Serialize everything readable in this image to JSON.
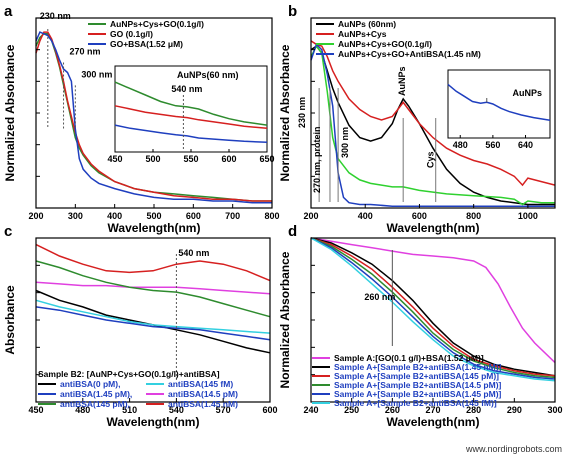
{
  "watermark": "www.nordingrobots.com",
  "chart_data": [
    {
      "panel": "a",
      "type": "line",
      "xlabel": "Wavelength(nm)",
      "ylabel": "Normalized Absorbance",
      "xlim": [
        200,
        800
      ],
      "ylim": [
        0,
        1.08
      ],
      "xticks": [
        200,
        300,
        400,
        500,
        600,
        700,
        800
      ],
      "legend_position": "top-right",
      "annotations": [
        {
          "text": "230 nm",
          "x": 230,
          "y": 1.04
        },
        {
          "text": "270 nm",
          "x": 270,
          "y": 0.85
        },
        {
          "text": "300 nm",
          "x": 300,
          "y": 0.72
        }
      ],
      "series": [
        {
          "name": "AuNPs+Cys+GO(0.1g/l)",
          "color": "#2e8b2e",
          "x": [
            200,
            210,
            220,
            230,
            240,
            250,
            260,
            270,
            280,
            290,
            300,
            310,
            320,
            340,
            360,
            400,
            450,
            500,
            550,
            600,
            650,
            700,
            750,
            800
          ],
          "y": [
            0.92,
            0.97,
            0.99,
            0.99,
            0.95,
            0.88,
            0.8,
            0.7,
            0.6,
            0.5,
            0.4,
            0.34,
            0.3,
            0.24,
            0.2,
            0.15,
            0.11,
            0.09,
            0.08,
            0.07,
            0.06,
            0.05,
            0.04,
            0.04
          ]
        },
        {
          "name": "GO (0.1g/l)",
          "color": "#d62020",
          "x": [
            200,
            210,
            220,
            230,
            240,
            250,
            260,
            270,
            280,
            290,
            300,
            310,
            320,
            340,
            360,
            400,
            450,
            500,
            550,
            600,
            650,
            700,
            750,
            800
          ],
          "y": [
            0.88,
            0.95,
            1.0,
            1.0,
            0.96,
            0.89,
            0.81,
            0.72,
            0.61,
            0.52,
            0.43,
            0.36,
            0.31,
            0.25,
            0.21,
            0.15,
            0.11,
            0.09,
            0.07,
            0.06,
            0.05,
            0.05,
            0.04,
            0.04
          ]
        },
        {
          "name": "GO+BSA(1.52 μM)",
          "color": "#1f3fbf",
          "x": [
            200,
            210,
            220,
            230,
            240,
            250,
            260,
            270,
            280,
            290,
            300,
            310,
            320,
            340,
            360,
            400,
            450,
            500,
            550,
            600,
            650,
            700,
            750,
            800
          ],
          "y": [
            0.95,
            1.0,
            0.99,
            0.98,
            0.95,
            0.9,
            0.84,
            0.79,
            0.77,
            0.72,
            0.45,
            0.28,
            0.22,
            0.17,
            0.14,
            0.11,
            0.08,
            0.06,
            0.05,
            0.05,
            0.04,
            0.04,
            0.03,
            0.03
          ]
        }
      ],
      "inset": {
        "title": "AuNPs(60 nm)",
        "annotation": {
          "text": "540 nm",
          "x": 540
        },
        "xlim": [
          450,
          650
        ],
        "xticks": [
          450,
          500,
          550,
          600,
          650
        ],
        "series": [
          {
            "color": "#2e8b2e",
            "x": [
              450,
              470,
              490,
              510,
              530,
              545,
              560,
              580,
              600,
              620,
              650
            ],
            "y": [
              0.8,
              0.74,
              0.68,
              0.62,
              0.58,
              0.57,
              0.55,
              0.5,
              0.46,
              0.43,
              0.4
            ]
          },
          {
            "color": "#d62020",
            "x": [
              450,
              470,
              490,
              510,
              530,
              545,
              560,
              580,
              600,
              620,
              650
            ],
            "y": [
              0.58,
              0.55,
              0.52,
              0.5,
              0.48,
              0.47,
              0.45,
              0.43,
              0.41,
              0.39,
              0.37
            ]
          },
          {
            "color": "#1f3fbf",
            "x": [
              450,
              470,
              490,
              510,
              530,
              545,
              560,
              580,
              600,
              620,
              650
            ],
            "y": [
              0.4,
              0.37,
              0.35,
              0.33,
              0.31,
              0.3,
              0.28,
              0.27,
              0.26,
              0.25,
              0.24
            ]
          }
        ]
      }
    },
    {
      "panel": "b",
      "type": "line",
      "xlabel": "Wavelength(nm)",
      "ylabel": "Normalized Absorbance",
      "xlim": [
        200,
        1100
      ],
      "ylim": [
        0,
        1.08
      ],
      "xticks": [
        200,
        400,
        600,
        800,
        1000
      ],
      "legend_position": "top-right",
      "annotations": [
        {
          "text": "230 nm",
          "x": 230
        },
        {
          "text": "270 nm, protein",
          "x": 270
        },
        {
          "text": "300 nm",
          "x": 300
        },
        {
          "text": "AuNPs",
          "x": 540
        },
        {
          "text": "Cys",
          "x": 660
        }
      ],
      "series": [
        {
          "name": "AuNPs (60nm)",
          "color": "#000000",
          "x": [
            200,
            220,
            240,
            260,
            280,
            300,
            340,
            380,
            420,
            460,
            500,
            520,
            540,
            560,
            600,
            650,
            700,
            750,
            800,
            850,
            900,
            950,
            1000,
            1050,
            1100
          ],
          "y": [
            0.9,
            0.92,
            0.88,
            0.78,
            0.68,
            0.6,
            0.47,
            0.4,
            0.38,
            0.4,
            0.48,
            0.56,
            0.62,
            0.58,
            0.48,
            0.34,
            0.22,
            0.14,
            0.09,
            0.06,
            0.04,
            0.03,
            0.02,
            0.02,
            0.02
          ]
        },
        {
          "name": "AuNPs+Cys",
          "color": "#d62020",
          "x": [
            200,
            220,
            240,
            260,
            280,
            300,
            340,
            380,
            420,
            460,
            500,
            520,
            540,
            560,
            600,
            650,
            700,
            750,
            800,
            850,
            900,
            950,
            980,
            1000,
            1050,
            1100
          ],
          "y": [
            0.95,
            0.93,
            0.92,
            0.86,
            0.78,
            0.72,
            0.62,
            0.56,
            0.52,
            0.5,
            0.52,
            0.56,
            0.6,
            0.56,
            0.48,
            0.4,
            0.34,
            0.3,
            0.27,
            0.25,
            0.22,
            0.18,
            0.13,
            0.17,
            0.15,
            0.13
          ]
        },
        {
          "name": "AuNPs+Cys+GO(0.1g/l)",
          "color": "#2fd12f",
          "x": [
            200,
            220,
            240,
            260,
            280,
            300,
            340,
            380,
            420,
            460,
            500,
            540,
            600,
            700,
            800,
            900,
            950,
            980,
            1000,
            1050,
            1100
          ],
          "y": [
            0.86,
            0.92,
            0.88,
            0.66,
            0.4,
            0.28,
            0.2,
            0.16,
            0.14,
            0.13,
            0.12,
            0.12,
            0.1,
            0.08,
            0.07,
            0.06,
            0.05,
            0.02,
            0.04,
            0.03,
            0.03
          ]
        },
        {
          "name": "AuNPs+Cys+GO+AntiBSA(1.45 nM)",
          "color": "#1f3fbf",
          "x": [
            200,
            220,
            240,
            260,
            280,
            300,
            320,
            340,
            380,
            420,
            500,
            600,
            700,
            800,
            900,
            1000,
            1100
          ],
          "y": [
            0.84,
            0.93,
            0.9,
            0.76,
            0.58,
            0.2,
            0.06,
            0.03,
            0.02,
            0.02,
            0.01,
            0.01,
            0.01,
            0.01,
            0.01,
            0.01,
            0.01
          ]
        }
      ],
      "inset": {
        "title": "AuNPs",
        "xlim": [
          450,
          700
        ],
        "xticks": [
          480,
          560,
          640
        ],
        "series": [
          {
            "color": "#1f3fbf",
            "x": [
              450,
              470,
              490,
              510,
              530,
              545,
              560,
              580,
              600,
              630,
              660,
              700
            ],
            "y": [
              0.78,
              0.7,
              0.64,
              0.58,
              0.56,
              0.57,
              0.55,
              0.5,
              0.46,
              0.42,
              0.39,
              0.36
            ]
          }
        ]
      }
    },
    {
      "panel": "c",
      "type": "line",
      "xlabel": "Wavelength(nm)",
      "ylabel": "Absorbance",
      "xlim": [
        450,
        600
      ],
      "ylim": [
        0,
        1.0
      ],
      "xticks": [
        450,
        480,
        510,
        540,
        570,
        600
      ],
      "legend_position": "bottom-left",
      "legend_title": "Sample B2: [AuNP+Cys+GO(0.1g/l)+antiBSA]",
      "annotations": [
        {
          "text": "540 nm",
          "x": 540
        }
      ],
      "series": [
        {
          "name": "antiBSA(0 pM),",
          "color": "#000000",
          "x": [
            450,
            465,
            480,
            495,
            510,
            525,
            540,
            555,
            570,
            585,
            600
          ],
          "y": [
            0.68,
            0.62,
            0.58,
            0.53,
            0.5,
            0.47,
            0.44,
            0.41,
            0.37,
            0.33,
            0.3
          ]
        },
        {
          "name": "antiBSA(145 fM)",
          "color": "#33d0e0",
          "x": [
            450,
            465,
            480,
            495,
            510,
            525,
            540,
            555,
            570,
            585,
            600
          ],
          "y": [
            0.62,
            0.58,
            0.55,
            0.52,
            0.49,
            0.47,
            0.46,
            0.45,
            0.44,
            0.43,
            0.42
          ]
        },
        {
          "name": "antiBSA(1.45 pM),",
          "color": "#1f3fbf",
          "x": [
            450,
            465,
            480,
            495,
            510,
            525,
            540,
            555,
            570,
            585,
            600
          ],
          "y": [
            0.58,
            0.56,
            0.53,
            0.5,
            0.48,
            0.46,
            0.45,
            0.44,
            0.42,
            0.4,
            0.38
          ]
        },
        {
          "name": "antiBSA(14.5 pM)",
          "color": "#e040e0",
          "x": [
            450,
            465,
            480,
            495,
            510,
            525,
            540,
            555,
            570,
            585,
            600
          ],
          "y": [
            0.73,
            0.72,
            0.71,
            0.71,
            0.7,
            0.7,
            0.7,
            0.69,
            0.68,
            0.67,
            0.66
          ]
        },
        {
          "name": "antiBSA(145 pM),",
          "color": "#2e8b2e",
          "x": [
            450,
            465,
            480,
            495,
            510,
            525,
            540,
            555,
            570,
            585,
            600
          ],
          "y": [
            0.86,
            0.82,
            0.77,
            0.73,
            0.7,
            0.68,
            0.67,
            0.64,
            0.6,
            0.56,
            0.52
          ]
        },
        {
          "name": "antiBSA(1.45 nM)",
          "color": "#d62020",
          "x": [
            450,
            465,
            480,
            495,
            510,
            525,
            540,
            555,
            570,
            585,
            600
          ],
          "y": [
            0.96,
            0.89,
            0.84,
            0.8,
            0.79,
            0.8,
            0.84,
            0.86,
            0.84,
            0.8,
            0.74
          ]
        }
      ]
    },
    {
      "panel": "d",
      "type": "line",
      "xlabel": "Wavelength(nm)",
      "ylabel": "Normalized Absorbance",
      "xlim": [
        240,
        300
      ],
      "ylim": [
        0,
        1.0
      ],
      "xticks": [
        240,
        250,
        260,
        270,
        280,
        290,
        300
      ],
      "legend_position": "bottom-left",
      "annotations": [
        {
          "text": "260 nm",
          "x": 260
        }
      ],
      "series": [
        {
          "name": "Sample A:[GO(0.1 g/l)+BSA(1.52 μM)]",
          "color": "#e040e0",
          "x": [
            240,
            245,
            250,
            255,
            260,
            265,
            270,
            275,
            280,
            283,
            286,
            289,
            292,
            295,
            300
          ],
          "y": [
            1.0,
            0.98,
            0.96,
            0.94,
            0.92,
            0.9,
            0.89,
            0.88,
            0.86,
            0.82,
            0.72,
            0.58,
            0.45,
            0.36,
            0.24
          ]
        },
        {
          "name": "Sample A+[Sample B2+antiBSA(1.45 nM)]",
          "color": "#000000",
          "x": [
            240,
            245,
            250,
            255,
            260,
            265,
            270,
            275,
            280,
            285,
            290,
            295,
            300
          ],
          "y": [
            1.0,
            0.97,
            0.91,
            0.84,
            0.74,
            0.62,
            0.48,
            0.36,
            0.28,
            0.23,
            0.2,
            0.18,
            0.16
          ]
        },
        {
          "name": "Sample A+[Sample B2+antiBSA(145 pM)]",
          "color": "#d62020",
          "x": [
            240,
            245,
            250,
            255,
            260,
            265,
            270,
            275,
            280,
            285,
            290,
            295,
            300
          ],
          "y": [
            1.0,
            0.96,
            0.89,
            0.81,
            0.7,
            0.58,
            0.45,
            0.34,
            0.26,
            0.22,
            0.19,
            0.17,
            0.16
          ]
        },
        {
          "name": "Sample A+[Sample B2+antiBSA(14.5 pM)]",
          "color": "#2e8b2e",
          "x": [
            240,
            245,
            250,
            255,
            260,
            265,
            270,
            275,
            280,
            285,
            290,
            295,
            300
          ],
          "y": [
            1.0,
            0.95,
            0.87,
            0.78,
            0.67,
            0.55,
            0.42,
            0.32,
            0.25,
            0.21,
            0.18,
            0.16,
            0.15
          ]
        },
        {
          "name": "Sample A+[Sample B2+antiBSA(1.45 pM)]",
          "color": "#1f3fbf",
          "x": [
            240,
            245,
            250,
            255,
            260,
            265,
            270,
            275,
            280,
            285,
            290,
            295,
            300
          ],
          "y": [
            1.0,
            0.94,
            0.85,
            0.75,
            0.64,
            0.52,
            0.4,
            0.3,
            0.23,
            0.19,
            0.17,
            0.15,
            0.14
          ]
        },
        {
          "name": "Sample A+[Sample B2+antiBSA(145 fM)]",
          "color": "#33d0e0",
          "x": [
            240,
            245,
            250,
            255,
            260,
            265,
            270,
            275,
            280,
            285,
            290,
            295,
            300
          ],
          "y": [
            1.0,
            0.93,
            0.83,
            0.72,
            0.61,
            0.49,
            0.38,
            0.28,
            0.22,
            0.18,
            0.16,
            0.14,
            0.13
          ]
        }
      ]
    }
  ]
}
